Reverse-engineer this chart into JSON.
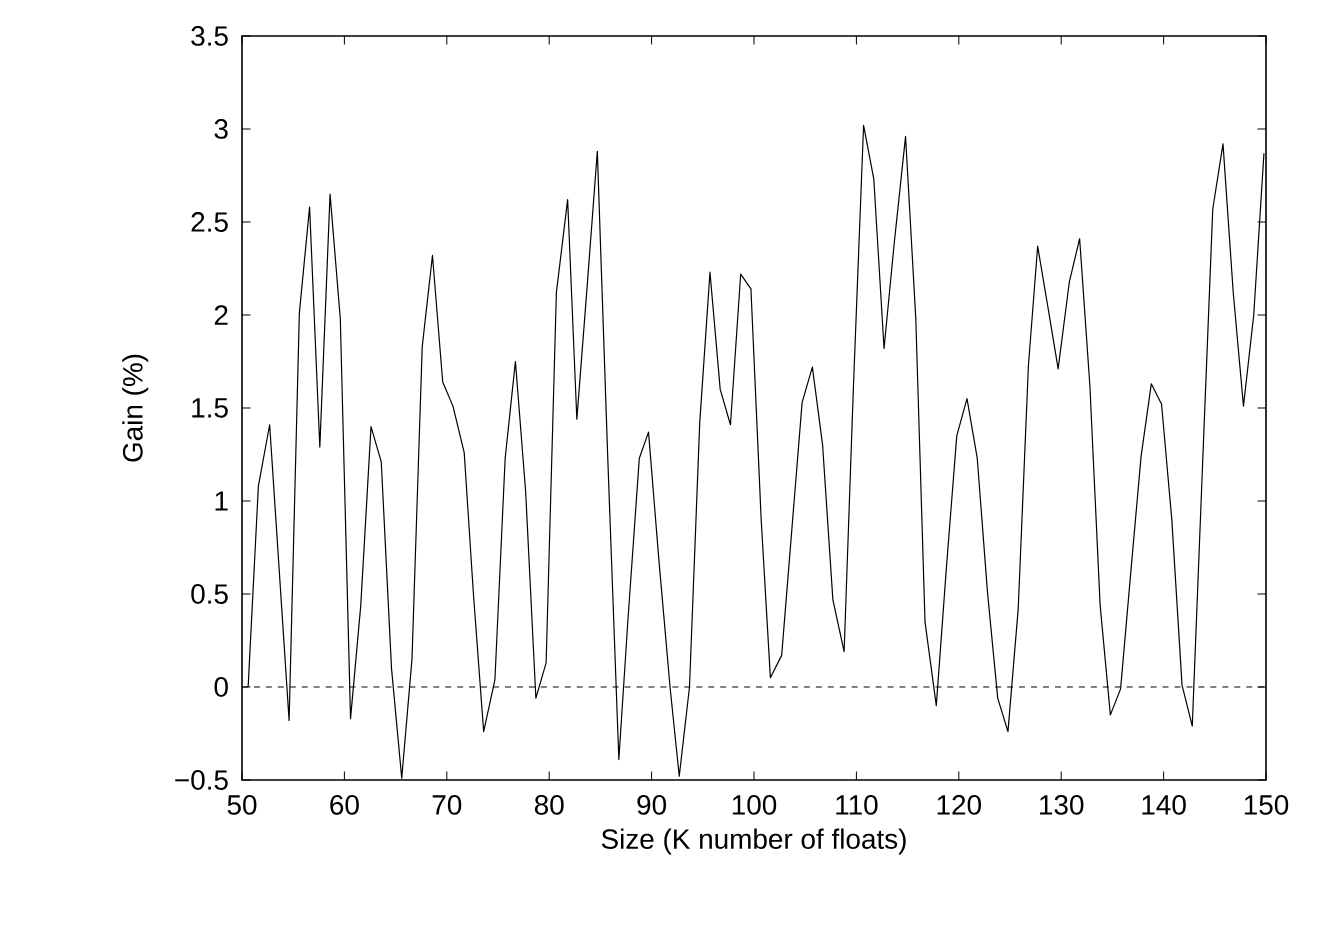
{
  "chart_data": {
    "type": "line",
    "xlabel": "Size (K number of floats)",
    "ylabel": "Gain (%)",
    "xlim": [
      50,
      150
    ],
    "ylim": [
      -0.5,
      3.5
    ],
    "xticks": [
      50,
      60,
      70,
      80,
      90,
      100,
      110,
      120,
      130,
      140,
      150
    ],
    "yticks": [
      {
        "value": -0.5,
        "label": "−0.5"
      },
      0,
      0.5,
      1,
      1.5,
      2,
      2.5,
      3,
      3.5
    ],
    "ref_lines": [
      {
        "axis": "y",
        "value": 0,
        "color": "#000000",
        "line_style": "dashed"
      }
    ],
    "series": [
      {
        "color": "#000000",
        "x": [
          50.6,
          51.6,
          52.7,
          54.6,
          55.6,
          56.6,
          57.6,
          58.6,
          59.6,
          60.6,
          61.6,
          62.6,
          63.6,
          64.6,
          65.6,
          66.6,
          67.6,
          68.6,
          69.6,
          70.6,
          71.7,
          72.6,
          73.6,
          74.7,
          75.7,
          76.7,
          77.7,
          78.7,
          79.7,
          80.7,
          81.8,
          82.7,
          83.7,
          84.7,
          85.7,
          86.8,
          87.7,
          88.8,
          89.7,
          90.7,
          91.8,
          92.7,
          93.7,
          94.7,
          95.7,
          96.7,
          97.7,
          98.7,
          99.7,
          100.7,
          101.6,
          102.7,
          103.7,
          104.7,
          105.7,
          106.7,
          107.7,
          108.8,
          109.7,
          110.7,
          111.7,
          112.7,
          113.7,
          114.8,
          115.8,
          116.7,
          117.8,
          118.8,
          119.8,
          120.8,
          121.8,
          122.8,
          123.8,
          124.8,
          125.8,
          126.8,
          127.7,
          128.8,
          129.7,
          130.8,
          131.8,
          132.8,
          133.8,
          134.8,
          135.8,
          136.8,
          137.8,
          138.8,
          139.8,
          140.8,
          141.8,
          142.8,
          143.8,
          144.8,
          145.8,
          146.8,
          147.8,
          148.8,
          149.8
        ],
        "values": [
          0,
          1.08,
          1.41,
          -0.18,
          2.01,
          2.58,
          1.29,
          2.65,
          1.98,
          -0.17,
          0.44,
          1.4,
          1.21,
          0.1,
          -0.49,
          0.15,
          1.83,
          2.32,
          1.64,
          1.51,
          1.26,
          0.5,
          -0.24,
          0.04,
          1.23,
          1.75,
          1.05,
          -0.06,
          0.13,
          2.12,
          2.62,
          1.44,
          2.15,
          2.88,
          1.26,
          -0.39,
          0.37,
          1.23,
          1.37,
          0.69,
          0,
          -0.48,
          0,
          1.42,
          2.23,
          1.6,
          1.41,
          2.22,
          2.14,
          0.9,
          0.05,
          0.17,
          0.85,
          1.53,
          1.72,
          1.3,
          0.47,
          0.19,
          1.6,
          3.02,
          2.73,
          1.82,
          2.39,
          2.96,
          1.98,
          0.35,
          -0.1,
          0.65,
          1.35,
          1.55,
          1.23,
          0.51,
          -0.06,
          -0.24,
          0.42,
          1.73,
          2.37,
          2.01,
          1.71,
          2.18,
          2.41,
          1.62,
          0.44,
          -0.15,
          -0.01,
          0.62,
          1.24,
          1.63,
          1.52,
          0.9,
          0.01,
          -0.21,
          1.19,
          2.57,
          2.92,
          2.12,
          1.51,
          2,
          2.87
        ]
      }
    ]
  }
}
